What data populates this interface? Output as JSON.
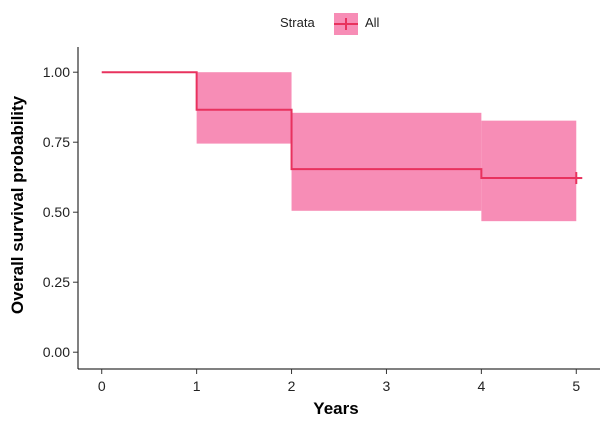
{
  "chart_data": {
    "type": "line",
    "subtype": "kaplan-meier survival curve with confidence band",
    "title": "",
    "xlabel": "Years",
    "ylabel": "Overall survival probability",
    "xlim": [
      -0.25,
      5.25
    ],
    "ylim": [
      -0.06,
      1.09
    ],
    "x_ticks": [
      0,
      1,
      2,
      3,
      4,
      5
    ],
    "y_ticks": [
      0.0,
      0.25,
      0.5,
      0.75,
      1.0
    ],
    "y_tick_labels": [
      "0.00",
      "0.25",
      "0.50",
      "0.75",
      "1.00"
    ],
    "grid": false,
    "legend": {
      "title": "Strata",
      "placement": "top",
      "entries": [
        "All"
      ]
    },
    "series": [
      {
        "name": "All",
        "color": "#e8325e",
        "band_color": "#f78db6",
        "steps": [
          {
            "x_start": 0,
            "x_end": 1,
            "survival": 1.0,
            "lower": 1.0,
            "upper": 1.0
          },
          {
            "x_start": 1,
            "x_end": 2,
            "survival": 0.866,
            "lower": 0.745,
            "upper": 1.0
          },
          {
            "x_start": 2,
            "x_end": 4,
            "survival": 0.654,
            "lower": 0.505,
            "upper": 0.855
          },
          {
            "x_start": 4,
            "x_end": 5,
            "survival": 0.622,
            "lower": 0.468,
            "upper": 0.827
          }
        ],
        "censored": [
          {
            "x": 5,
            "y": 0.622
          }
        ]
      }
    ]
  }
}
